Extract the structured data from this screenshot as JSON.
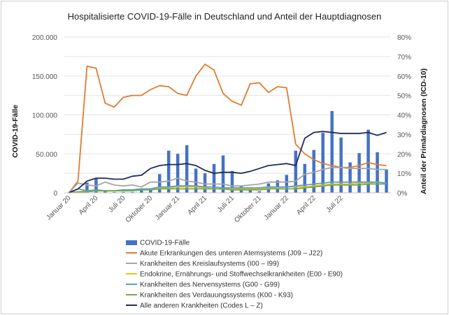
{
  "chart_data": {
    "type": "bar",
    "title": "Hospitalisierte COVID-19-Fälle in Deutschland und Anteil der Hauptdiagnosen",
    "ylabel_left": "COVID-19-Fälle",
    "ylabel_right": "Anteil der Primärdiagnosen (ICD-10)",
    "ylim_left": [
      0,
      200000
    ],
    "ylim_right": [
      0,
      80
    ],
    "y_ticks_left": [
      "0",
      "50.000",
      "100.000",
      "150.000",
      "200.000"
    ],
    "y_ticks_right": [
      "0%",
      "10%",
      "20%",
      "30%",
      "40%",
      "50%",
      "60%",
      "70%",
      "80%"
    ],
    "x_tick_labels": [
      "Januar 20",
      "April 20",
      "Juli 20",
      "Oktober 20",
      "Januar 21",
      "April 21",
      "Juli 21",
      "Oktober 21",
      "Januar 22",
      "April 22",
      "Juli 22"
    ],
    "legend_position": "bottom",
    "grid": true,
    "series": [
      {
        "name": "COVID-19-Fälle",
        "kind": "bar",
        "axis": "left",
        "color": "#4472c4",
        "values": [
          0,
          0,
          13000,
          18000,
          3000,
          1000,
          1000,
          1000,
          3000,
          4000,
          24000,
          54000,
          50000,
          61000,
          31000,
          25000,
          37000,
          48000,
          28000,
          8000,
          4000,
          2000,
          12000,
          16000,
          23000,
          54000,
          37000,
          55000,
          77000,
          105000,
          71000,
          39000,
          51000,
          81000,
          52000,
          30000
        ]
      },
      {
        "name": "Akute Erkrankungen des unteren Atemsystems (J09 – J22)",
        "kind": "line",
        "axis": "right",
        "color": "#e07b30",
        "values": [
          0,
          6,
          65,
          64,
          46,
          44,
          49,
          50,
          50,
          53,
          55,
          54.5,
          51,
          50,
          60,
          66,
          63,
          51,
          47,
          45,
          56,
          56.5,
          51.5,
          54.5,
          54,
          25,
          20,
          17,
          15,
          14,
          13,
          13,
          14,
          15.5,
          14.5,
          14
        ]
      },
      {
        "name": "Krankheiten des Kreislaufsystems (I00 – I99)",
        "kind": "line",
        "axis": "right",
        "color": "#a5a5a5",
        "values": [
          0,
          5,
          4,
          3.5,
          5.5,
          4,
          3.5,
          4,
          3,
          5.5,
          5.5,
          6,
          7.5,
          6,
          5.5,
          4.5,
          4.5,
          4.5,
          3.5,
          3.5,
          4,
          4.5,
          5.5,
          5.5,
          5.5,
          6,
          9.5,
          10.5,
          12,
          13,
          13,
          12.5,
          12.5,
          12.5,
          12,
          12
        ]
      },
      {
        "name": "Endokrine, Ernährungs- und Stoffwechselkrankheiten (E00 - E90)",
        "kind": "line",
        "axis": "right",
        "color": "#f5c400",
        "values": [
          0,
          0.5,
          1,
          1,
          1,
          1,
          1,
          1.5,
          2,
          2,
          2.5,
          2.5,
          3,
          3,
          3,
          2.5,
          2,
          2,
          2,
          2,
          2,
          2,
          2.5,
          2.5,
          3,
          3,
          3,
          3.5,
          4,
          4.5,
          4.5,
          4.5,
          5,
          5,
          5.5,
          5
        ]
      },
      {
        "name": "Krankheiten des Nervensystems (G00 - G99)",
        "kind": "line",
        "axis": "right",
        "color": "#5b9bd5",
        "values": [
          0,
          2,
          1,
          1.5,
          1,
          1,
          1.5,
          1.5,
          2,
          2,
          3,
          3,
          3.5,
          3.5,
          3.5,
          3,
          3,
          2.5,
          2.5,
          2.5,
          2.5,
          2.5,
          3,
          3,
          3,
          3.5,
          4,
          4.5,
          5,
          5.5,
          5.5,
          5.5,
          5.5,
          5.5,
          5.5,
          5
        ]
      },
      {
        "name": "Krankheiten des Verdauungssystems (K00 - K93)",
        "kind": "line",
        "axis": "right",
        "color": "#70ad47",
        "values": [
          0,
          0.5,
          0.5,
          1,
          1,
          1,
          1,
          1,
          1.5,
          1.5,
          2,
          2,
          2,
          2,
          2,
          2,
          2,
          2,
          1.5,
          1.5,
          1.5,
          1.5,
          2,
          2,
          2,
          2,
          2.5,
          3,
          3.5,
          4,
          4,
          4,
          4,
          4.5,
          4.5,
          4.5
        ]
      },
      {
        "name": "Alle anderen Krankheiten (Codes L – Z)",
        "kind": "line",
        "axis": "right",
        "color": "#1f2a5a",
        "values": [
          0,
          2,
          6,
          7.5,
          7.5,
          7,
          7,
          8.5,
          9,
          12.5,
          14,
          14.5,
          14.5,
          15,
          14,
          11.5,
          10,
          10.5,
          10.5,
          10,
          11,
          12.5,
          14,
          14.5,
          15,
          14,
          28,
          31,
          31.5,
          31,
          30.5,
          30.5,
          30.5,
          31,
          29.5,
          31
        ]
      }
    ]
  }
}
